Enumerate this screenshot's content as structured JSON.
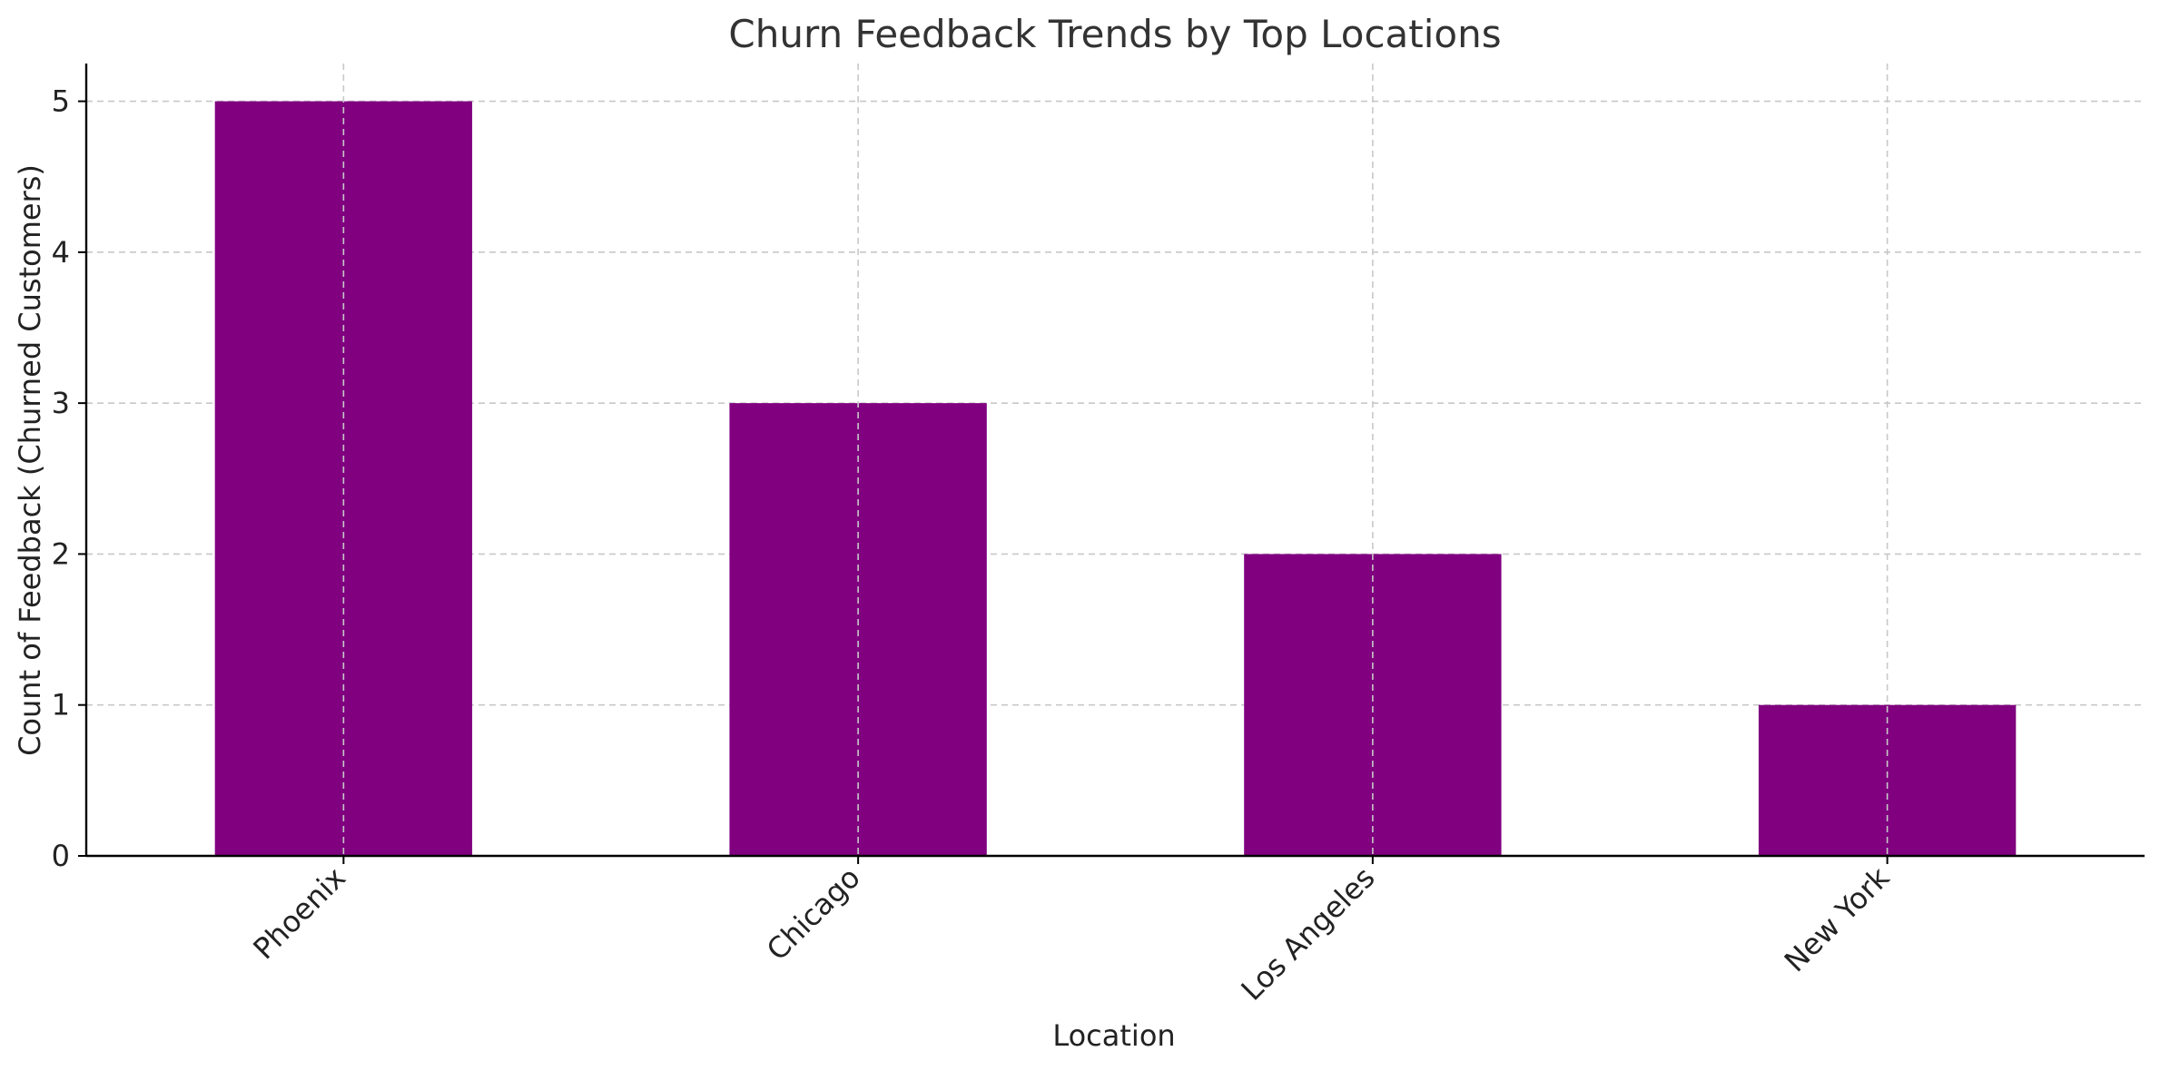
{
  "chart_data": {
    "type": "bar",
    "title": "Churn Feedback Trends by Top Locations",
    "xlabel": "Location",
    "ylabel": "Count of Feedback (Churned Customers)",
    "categories": [
      "Phoenix",
      "Chicago",
      "Los Angeles",
      "New York"
    ],
    "values": [
      5,
      3,
      2,
      1
    ],
    "ylim": [
      0,
      5.25
    ],
    "yticks": [
      "0",
      "1",
      "2",
      "3",
      "4",
      "5"
    ],
    "bar_color": "#800080",
    "grid": true,
    "legend": false
  }
}
